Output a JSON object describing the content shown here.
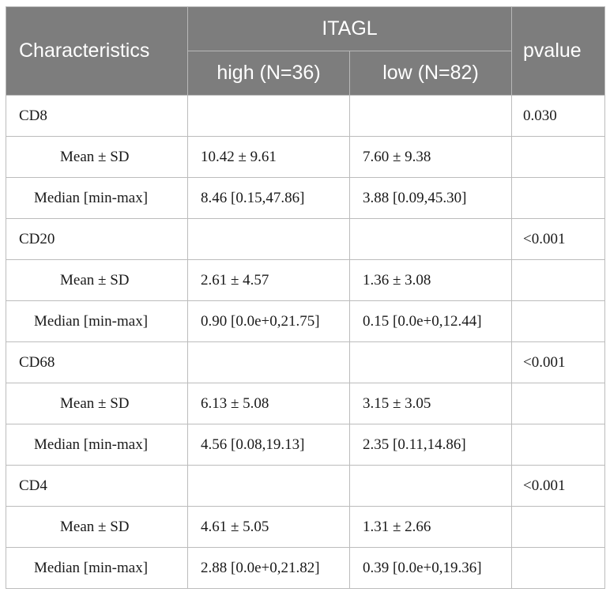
{
  "header": {
    "characteristics": "Characteristics",
    "group": "ITAGL",
    "high": "high (N=36)",
    "low": "low (N=82)",
    "pvalue": "pvalue"
  },
  "rows": [
    {
      "label": "CD8",
      "high": "",
      "low": "",
      "pvalue": "0.030"
    },
    {
      "label": "Mean ± SD",
      "high": "10.42 ± 9.61",
      "low": "7.60 ± 9.38",
      "pvalue": ""
    },
    {
      "label": "Median [min-max]",
      "high": "8.46 [0.15,47.86]",
      "low": "3.88 [0.09,45.30]",
      "pvalue": ""
    },
    {
      "label": "CD20",
      "high": "",
      "low": "",
      "pvalue": "<0.001"
    },
    {
      "label": "Mean ± SD",
      "high": "2.61 ± 4.57",
      "low": "1.36 ± 3.08",
      "pvalue": ""
    },
    {
      "label": "Median [min-max]",
      "high": "0.90 [0.0e+0,21.75]",
      "low": "0.15 [0.0e+0,12.44]",
      "pvalue": ""
    },
    {
      "label": "CD68",
      "high": "",
      "low": "",
      "pvalue": "<0.001"
    },
    {
      "label": "Mean ± SD",
      "high": "6.13 ± 5.08",
      "low": "3.15 ± 3.05",
      "pvalue": ""
    },
    {
      "label": "Median [min-max]",
      "high": "4.56 [0.08,19.13]",
      "low": "2.35 [0.11,14.86]",
      "pvalue": ""
    },
    {
      "label": "CD4",
      "high": "",
      "low": "",
      "pvalue": "<0.001"
    },
    {
      "label": "Mean ± SD",
      "high": "4.61 ± 5.05",
      "low": "1.31 ± 2.66",
      "pvalue": ""
    },
    {
      "label": "Median [min-max]",
      "high": "2.88 [0.0e+0,21.82]",
      "low": "0.39 [0.0e+0,19.36]",
      "pvalue": ""
    }
  ]
}
